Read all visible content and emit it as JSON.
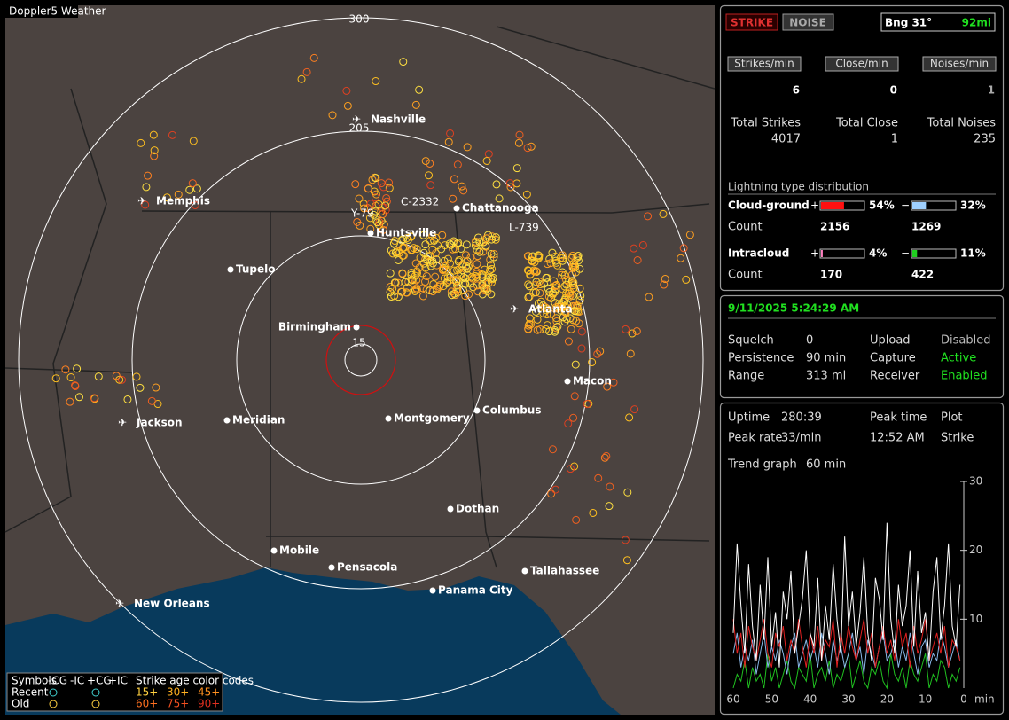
{
  "header": {
    "title": "Doppler5 Weather"
  },
  "map": {
    "ring_labels": [
      "300",
      "205",
      "15"
    ],
    "storm_labels": [
      "C-2332",
      "Y-79",
      "L-739"
    ],
    "cities": [
      "Nashville",
      "Memphis",
      "Chattanooga",
      "Huntsville",
      "Tupelo",
      "Atlanta",
      "Birmingham",
      "Macon",
      "Jackson",
      "Meridian",
      "Montgomery",
      "Columbus",
      "Dothan",
      "Mobile",
      "Pensacola",
      "Tallahassee",
      "Panama City",
      "New Orleans"
    ],
    "legend": {
      "symbols": "Symbols",
      "types": [
        "-CG",
        "-IC",
        "+CG",
        "+IC"
      ],
      "age_title": "Strike age color codes",
      "rows": [
        "Recent",
        "Old"
      ],
      "recent_ages": [
        "15+",
        "30+",
        "45+"
      ],
      "old_ages": [
        "60+",
        "75+",
        "90+"
      ]
    }
  },
  "stats": {
    "buttons": [
      "STRIKE",
      "NOISE"
    ],
    "bearing": "Bng 31°",
    "distance": "92mi",
    "rate_labels": [
      "Strikes/min",
      "Close/min",
      "Noises/min"
    ],
    "rates": [
      6,
      0,
      1
    ],
    "total_labels": [
      "Total Strikes",
      "Total Close",
      "Total Noises"
    ],
    "totals": [
      4017,
      1,
      235
    ],
    "distribution_title": "Lightning type distribution",
    "cloud_ground": {
      "label": "Cloud-ground",
      "plus": "+",
      "minus": "−",
      "pos": {
        "value": 54,
        "label": "54%"
      },
      "neg": {
        "value": 32,
        "label": "32%"
      },
      "count_label": "Count",
      "counts": [
        2156,
        1269
      ]
    },
    "intracloud": {
      "label": "Intracloud",
      "plus": "+",
      "minus": "−",
      "pos": {
        "value": 4,
        "label": "4%"
      },
      "neg": {
        "value": 11,
        "label": "11%"
      },
      "count_label": "Count",
      "counts": [
        170,
        422
      ]
    }
  },
  "status": {
    "datetime": "9/11/2025 5:24:29 AM",
    "rows": [
      [
        "Squelch",
        "0",
        "Upload",
        "Disabled"
      ],
      [
        "Persistence",
        "90 min",
        "Capture",
        "Active"
      ],
      [
        "Range",
        "313 mi",
        "Receiver",
        "Enabled"
      ]
    ]
  },
  "info": {
    "rows": [
      [
        "Uptime",
        "280:39",
        "Peak time",
        "Plot"
      ],
      [
        "Peak rate",
        "33/min",
        "12:52 AM",
        "Strike"
      ]
    ],
    "trend_label": "Trend graph",
    "trend_value": "60 min"
  },
  "chart_data": {
    "type": "line",
    "x_label": "min",
    "xlim": [
      60,
      0
    ],
    "xticks": [
      60,
      50,
      40,
      30,
      20,
      10,
      0
    ],
    "ylim": [
      0,
      30
    ],
    "yticks": [
      10,
      20,
      30
    ],
    "x": [
      60,
      59,
      58,
      57,
      56,
      55,
      54,
      53,
      52,
      51,
      50,
      49,
      48,
      47,
      46,
      45,
      44,
      43,
      42,
      41,
      40,
      39,
      38,
      37,
      36,
      35,
      34,
      33,
      32,
      31,
      30,
      29,
      28,
      27,
      26,
      25,
      24,
      23,
      22,
      21,
      20,
      19,
      18,
      17,
      16,
      15,
      14,
      13,
      12,
      11,
      10,
      9,
      8,
      7,
      6,
      5,
      4,
      3,
      2,
      1
    ],
    "series": [
      {
        "color": "#ffffff",
        "values": [
          8,
          21,
          12,
          5,
          18,
          9,
          4,
          15,
          7,
          19,
          6,
          11,
          3,
          14,
          10,
          17,
          5,
          9,
          13,
          20,
          8,
          6,
          16,
          4,
          12,
          7,
          18,
          10,
          5,
          22,
          9,
          14,
          6,
          11,
          19,
          8,
          4,
          16,
          13,
          7,
          24,
          10,
          5,
          15,
          9,
          12,
          20,
          6,
          17,
          8,
          11,
          4,
          14,
          19,
          7,
          12,
          21,
          9,
          6,
          15
        ]
      },
      {
        "color": "#e02020",
        "values": [
          10,
          5,
          8,
          3,
          9,
          6,
          4,
          7,
          10,
          5,
          3,
          8,
          6,
          9,
          4,
          7,
          5,
          10,
          6,
          3,
          8,
          5,
          9,
          4,
          7,
          6,
          10,
          3,
          8,
          5,
          9,
          6,
          4,
          7,
          10,
          5,
          8,
          3,
          6,
          9,
          5,
          7,
          4,
          10,
          6,
          8,
          3,
          9,
          5,
          7,
          10,
          4,
          6,
          8,
          5,
          9,
          3,
          7,
          6,
          4
        ]
      },
      {
        "color": "#8ab8e8",
        "values": [
          5,
          8,
          3,
          6,
          4,
          7,
          2,
          5,
          8,
          3,
          6,
          4,
          7,
          5,
          2,
          6,
          8,
          3,
          5,
          7,
          4,
          6,
          3,
          8,
          5,
          2,
          7,
          4,
          6,
          3,
          5,
          8,
          4,
          6,
          2,
          7,
          5,
          3,
          6,
          8,
          4,
          5,
          7,
          3,
          6,
          4,
          8,
          5,
          2,
          6,
          7,
          3,
          5,
          4,
          8,
          6,
          3,
          5,
          7,
          4
        ]
      },
      {
        "color": "#20c020",
        "values": [
          0,
          2,
          1,
          4,
          0,
          3,
          1,
          2,
          0,
          5,
          1,
          3,
          0,
          2,
          4,
          1,
          0,
          3,
          2,
          1,
          5,
          0,
          2,
          3,
          1,
          4,
          0,
          2,
          1,
          3,
          5,
          0,
          2,
          4,
          1,
          0,
          3,
          2,
          4,
          1,
          0,
          5,
          2,
          1,
          3,
          0,
          4,
          2,
          1,
          3,
          5,
          0,
          2,
          1,
          4,
          3,
          0,
          2,
          1,
          3
        ]
      }
    ]
  }
}
